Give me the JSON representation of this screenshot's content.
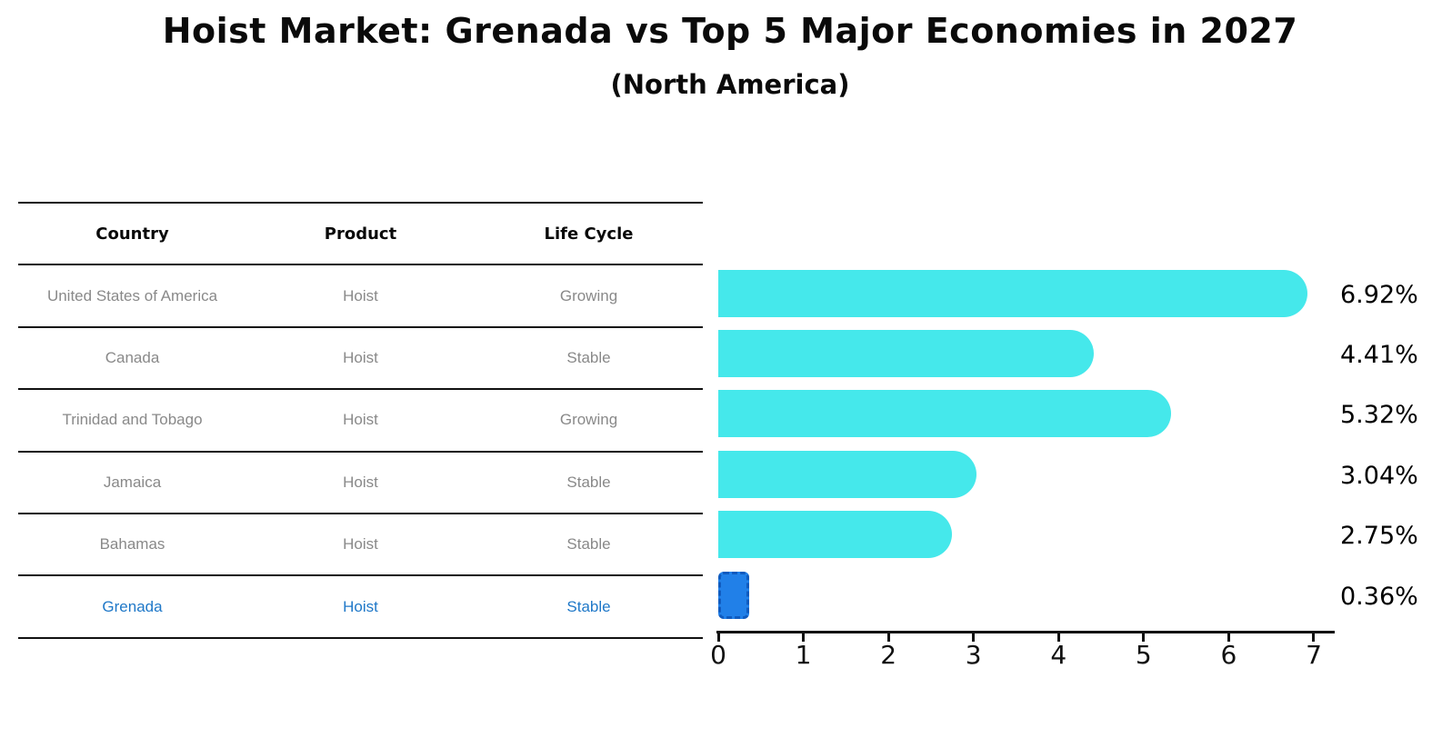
{
  "title": "Hoist Market: Grenada vs Top 5 Major Economies in 2027",
  "subtitle": "(North America)",
  "table": {
    "headers": [
      "Country",
      "Product",
      "Life Cycle"
    ],
    "rows": [
      {
        "country": "United States of America",
        "product": "Hoist",
        "life_cycle": "Growing"
      },
      {
        "country": "Canada",
        "product": "Hoist",
        "life_cycle": "Stable"
      },
      {
        "country": "Trinidad and Tobago",
        "product": "Hoist",
        "life_cycle": "Growing"
      },
      {
        "country": "Jamaica",
        "product": "Hoist",
        "life_cycle": "Stable"
      },
      {
        "country": "Bahamas",
        "product": "Hoist",
        "life_cycle": "Stable"
      },
      {
        "country": "Grenada",
        "product": "Hoist",
        "life_cycle": "Stable"
      }
    ],
    "highlighted_row": "Grenada"
  },
  "chart_data": {
    "type": "bar",
    "orientation": "horizontal",
    "title": "Hoist Market: Grenada vs Top 5 Major Economies in 2027",
    "subtitle": "(North America)",
    "categories": [
      "United States of America",
      "Canada",
      "Trinidad and Tobago",
      "Jamaica",
      "Bahamas",
      "Grenada"
    ],
    "values": [
      6.92,
      4.41,
      5.32,
      3.04,
      2.75,
      0.36
    ],
    "bar_labels": [
      "6.92%",
      "4.41%",
      "5.32%",
      "3.04%",
      "2.75%",
      "0.36%"
    ],
    "x_ticks": [
      0,
      1,
      2,
      3,
      4,
      5,
      6,
      7
    ],
    "xlim": [
      0,
      7.27
    ],
    "grid": false,
    "legend": "none",
    "highlight_index": 5,
    "colors": {
      "bar": "#45e8eb",
      "highlight_bar": "#2180e8",
      "highlight_border": "#0f5bbf",
      "value_label": "#000000",
      "row_text": "#898989",
      "highlight_text": "#1f78c8",
      "axis": "#111111"
    }
  }
}
